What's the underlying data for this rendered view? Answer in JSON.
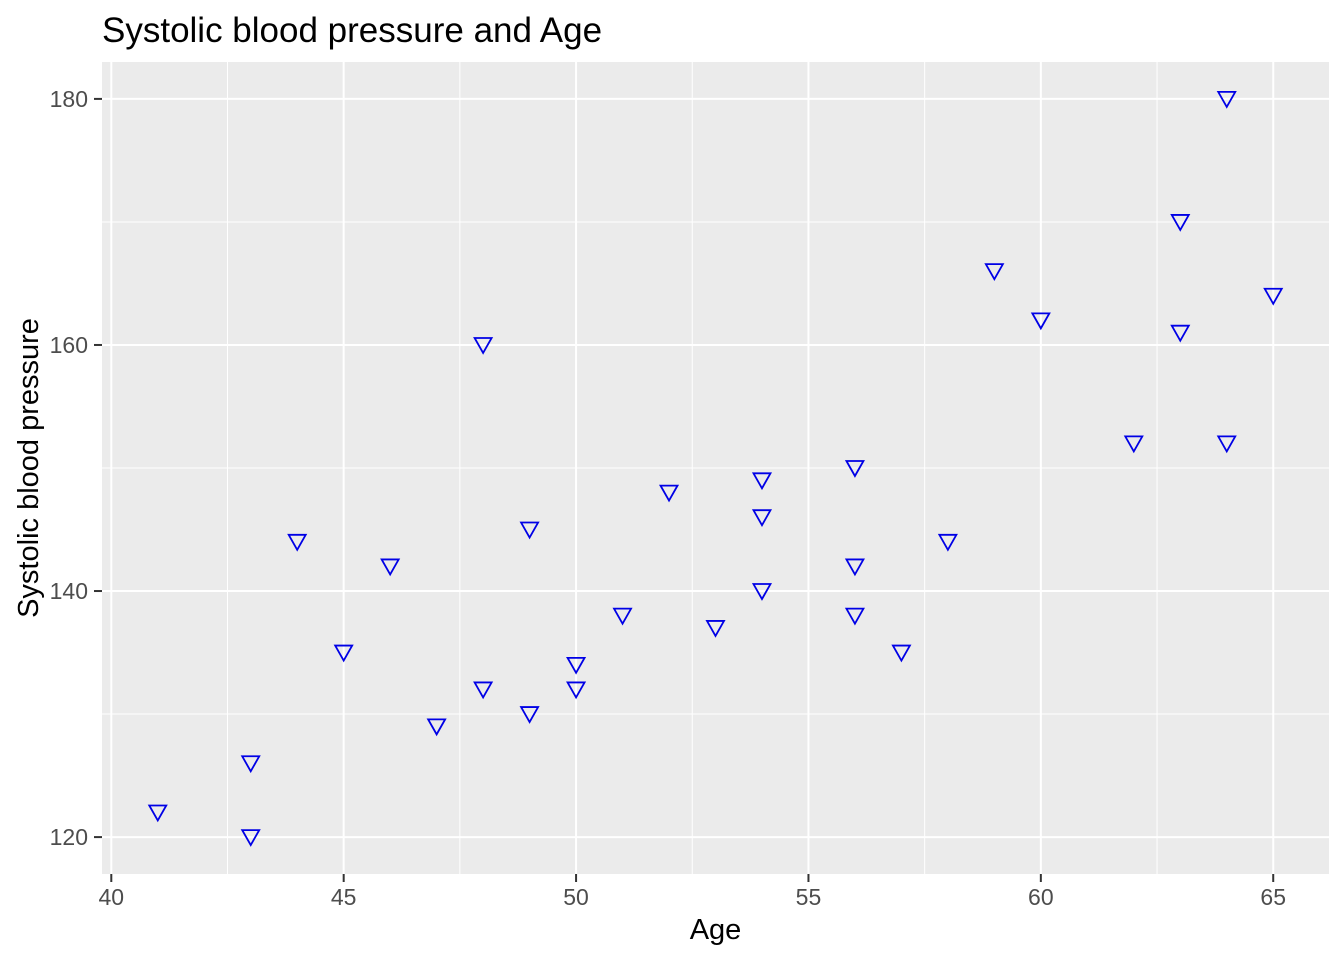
{
  "chart_data": {
    "type": "scatter",
    "title": "Systolic blood pressure and Age",
    "xlabel": "Age",
    "ylabel": "Systolic blood pressure",
    "x_ticks": [
      40,
      45,
      50,
      55,
      60,
      65
    ],
    "y_ticks": [
      120,
      140,
      160,
      180
    ],
    "xlim": [
      39.8,
      66.2
    ],
    "ylim": [
      117,
      183
    ],
    "grid": "major and minor gridlines on, white on grey panel",
    "legend": "none",
    "marker": {
      "shape": "open-triangle-down",
      "color": "#0000E6"
    },
    "style": {
      "panel_bg": "#EBEBEB",
      "grid_color": "#FFFFFF",
      "tick_label_color": "#4D4D4D",
      "tick_mark_color": "#333333",
      "title_color": "#000000",
      "axis_title_color": "#000000"
    },
    "points": [
      [
        41,
        122
      ],
      [
        43,
        120
      ],
      [
        43,
        126
      ],
      [
        44,
        144
      ],
      [
        45,
        135
      ],
      [
        46,
        142
      ],
      [
        47,
        129
      ],
      [
        48,
        132
      ],
      [
        48,
        160
      ],
      [
        49,
        130
      ],
      [
        49,
        145
      ],
      [
        50,
        132
      ],
      [
        50,
        134
      ],
      [
        51,
        138
      ],
      [
        52,
        148
      ],
      [
        53,
        137
      ],
      [
        54,
        140
      ],
      [
        54,
        146
      ],
      [
        54,
        149
      ],
      [
        56,
        138
      ],
      [
        56,
        142
      ],
      [
        56,
        150
      ],
      [
        57,
        135
      ],
      [
        58,
        144
      ],
      [
        59,
        166
      ],
      [
        60,
        162
      ],
      [
        62,
        152
      ],
      [
        63,
        161
      ],
      [
        63,
        170
      ],
      [
        64,
        152
      ],
      [
        64,
        180
      ],
      [
        65,
        164
      ]
    ]
  }
}
